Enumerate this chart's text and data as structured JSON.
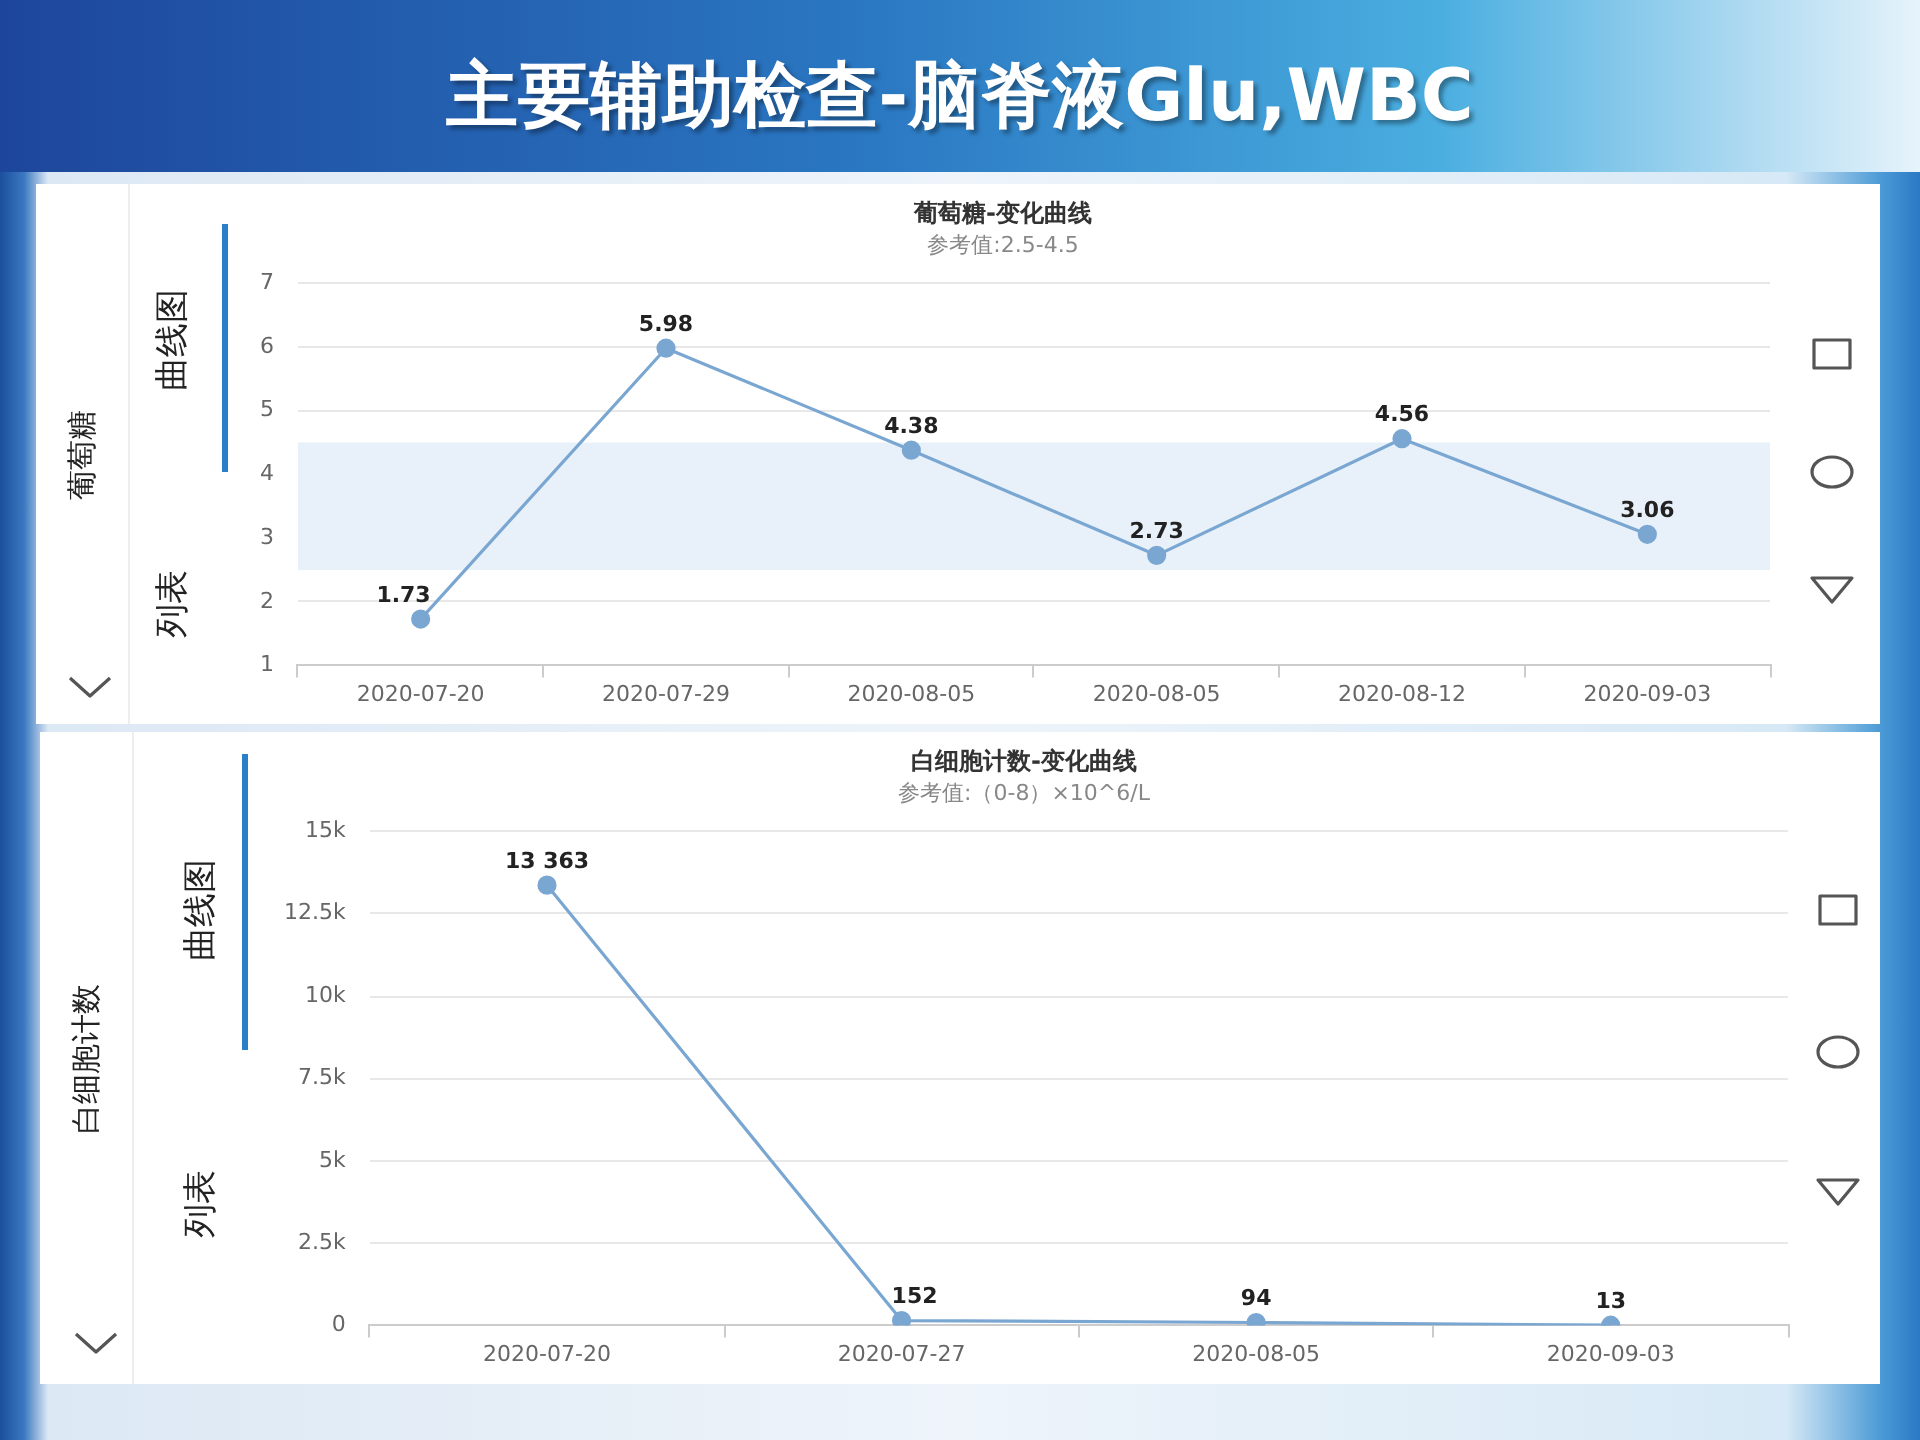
{
  "chart_data": [
    {
      "type": "line",
      "title": "葡萄糖-变化曲线",
      "subtitle": "参考值:2.5-4.5",
      "ylabel": "葡萄糖",
      "annotations": [
        "主要辅助检查-脑脊液Glu,WBC",
        "曲线图",
        "列表"
      ],
      "categories": [
        "2020-07-20",
        "2020-07-29",
        "2020-08-05",
        "2020-08-05",
        "2020-08-12",
        "2020-09-03"
      ],
      "values": [
        1.73,
        5.98,
        4.38,
        2.73,
        4.56,
        3.06
      ],
      "color": "#7aa6d2",
      "ylim": [
        1,
        7
      ],
      "yticks": [
        1,
        2,
        3,
        4,
        5,
        6,
        7
      ],
      "bands": [
        {
          "axis": "y",
          "from": 2.5,
          "to": 4.5,
          "color": "#e8f1fa"
        }
      ],
      "grid": "y",
      "marker": "circle",
      "data_labels": true
    },
    {
      "type": "line",
      "title": "白细胞计数-变化曲线",
      "subtitle": "参考值:（0-8）×10^6/L",
      "ylabel": "白细胞计数",
      "annotations": [
        "曲线图",
        "列表"
      ],
      "categories": [
        "2020-07-20",
        "2020-07-27",
        "2020-08-05",
        "2020-09-03"
      ],
      "values": [
        13363,
        152,
        94,
        13
      ],
      "value_labels": [
        "13 363",
        "152",
        "94",
        "13"
      ],
      "color": "#7aa6d2",
      "ylim": [
        0,
        15000
      ],
      "yticks": [
        0,
        {
          "value": 2500,
          "label": "2.5k"
        },
        {
          "value": 5000,
          "label": "5k"
        },
        {
          "value": 7500,
          "label": "7.5k"
        },
        {
          "value": 10000,
          "label": "10k"
        },
        {
          "value": 12500,
          "label": "12.5k"
        },
        {
          "value": 15000,
          "label": "15k"
        }
      ],
      "grid": "y",
      "marker": "circle"
    }
  ]
}
